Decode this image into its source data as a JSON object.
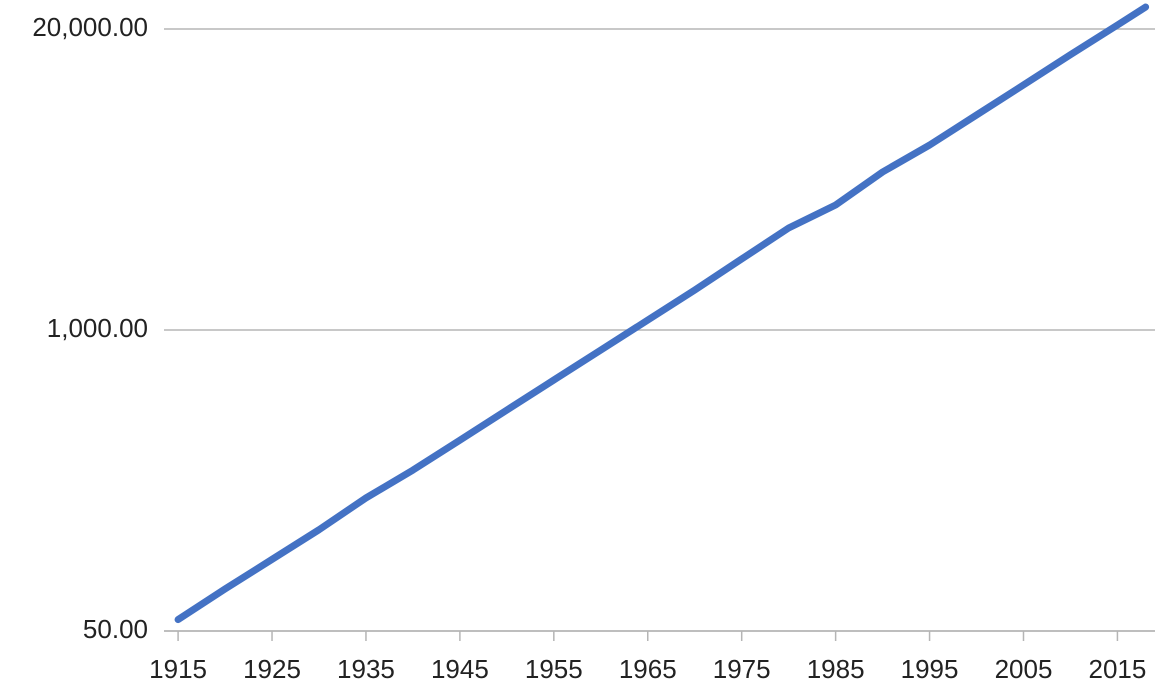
{
  "chart_data": {
    "type": "line",
    "x": [
      1915,
      1920,
      1925,
      1930,
      1935,
      1940,
      1945,
      1950,
      1955,
      1960,
      1965,
      1970,
      1975,
      1980,
      1985,
      1990,
      1995,
      2000,
      2005,
      2010,
      2015,
      2018
    ],
    "series": [
      {
        "color": "#4472c4",
        "values": [
          56,
          76,
          102,
          137,
          188,
          248,
          334,
          451,
          608,
          819,
          1104,
          1489,
          2028,
          2760,
          3470,
          4820,
          6300,
          8500,
          11460,
          15500,
          20800,
          24900
        ]
      }
    ],
    "xlim": [
      1913.5,
      2019
    ],
    "xticks": [
      1915,
      1925,
      1935,
      1945,
      1955,
      1965,
      1975,
      1985,
      1995,
      2005,
      2015
    ],
    "ylim": [
      50,
      26700
    ],
    "yticks": [
      {
        "value": 50,
        "label": "50.00"
      },
      {
        "value": 1000,
        "label": "1,000.00"
      },
      {
        "value": 20000,
        "label": "20,000.00"
      }
    ],
    "log_y": true,
    "grid": true
  }
}
